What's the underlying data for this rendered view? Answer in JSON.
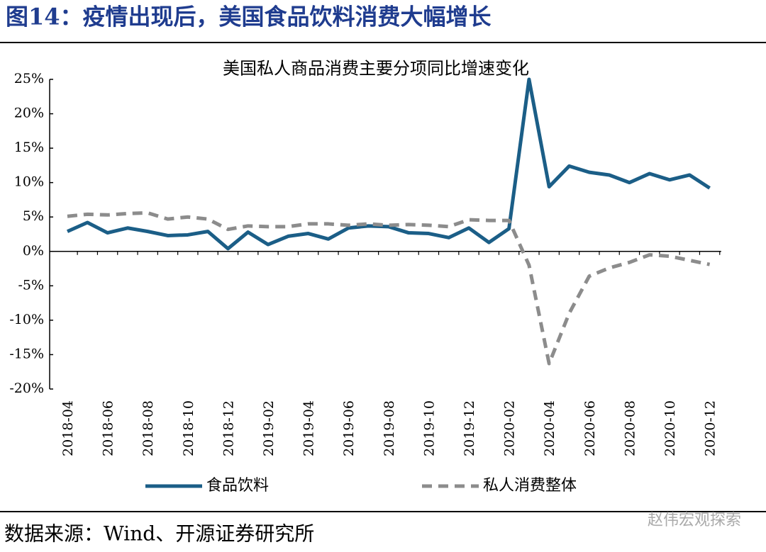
{
  "header": {
    "title": "图14：疫情出现后，美国食品饮料消费大幅增长"
  },
  "chart_data": {
    "type": "line",
    "title": "美国私人商品消费主要分项同比增速变化",
    "categories": [
      "2018-04",
      "2018-05",
      "2018-06",
      "2018-07",
      "2018-08",
      "2018-09",
      "2018-10",
      "2018-11",
      "2018-12",
      "2019-01",
      "2019-02",
      "2019-03",
      "2019-04",
      "2019-05",
      "2019-06",
      "2019-07",
      "2019-08",
      "2019-09",
      "2019-10",
      "2019-11",
      "2019-12",
      "2020-01",
      "2020-02",
      "2020-03",
      "2020-04",
      "2020-05",
      "2020-06",
      "2020-07",
      "2020-08",
      "2020-09",
      "2020-10",
      "2020-11",
      "2020-12"
    ],
    "series": [
      {
        "name": "食品饮料",
        "color": "#1b5e87",
        "dash": false,
        "values": [
          2.9,
          4.2,
          2.7,
          3.4,
          2.9,
          2.3,
          2.4,
          2.9,
          0.4,
          2.8,
          1.0,
          2.2,
          2.6,
          1.8,
          3.4,
          3.7,
          3.6,
          2.7,
          2.6,
          2.0,
          3.4,
          1.3,
          3.3,
          25,
          9.4,
          12.4,
          11.5,
          11.1,
          10.0,
          11.3,
          10.4,
          11.1,
          9.2
        ]
      },
      {
        "name": "私人消费整体",
        "color": "#8c8c8c",
        "dash": true,
        "values": [
          5.1,
          5.4,
          5.3,
          5.5,
          5.6,
          4.7,
          5.0,
          4.7,
          3.2,
          3.7,
          3.6,
          3.6,
          4.0,
          4.0,
          3.8,
          4.0,
          3.8,
          3.9,
          3.8,
          3.6,
          4.6,
          4.5,
          4.5,
          -2.0,
          -16.3,
          -9.0,
          -3.6,
          -2.4,
          -1.6,
          -0.5,
          -0.7,
          -1.3,
          -1.9
        ]
      }
    ],
    "ylim": [
      -20,
      25
    ],
    "yticks": [
      {
        "value": -20,
        "label": "-20%"
      },
      {
        "value": -15,
        "label": "-15%"
      },
      {
        "value": -10,
        "label": "-10%"
      },
      {
        "value": -5,
        "label": "-5%"
      },
      {
        "value": 0,
        "label": "0%"
      },
      {
        "value": 5,
        "label": "5%"
      },
      {
        "value": 10,
        "label": "10%"
      },
      {
        "value": 15,
        "label": "15%"
      },
      {
        "value": 20,
        "label": "20%"
      },
      {
        "value": 25,
        "label": "25%"
      }
    ],
    "legend": "bottom"
  },
  "footer": {
    "source": "数据来源：Wind、开源证券研究所",
    "watermark": "赵伟宏观探索"
  }
}
